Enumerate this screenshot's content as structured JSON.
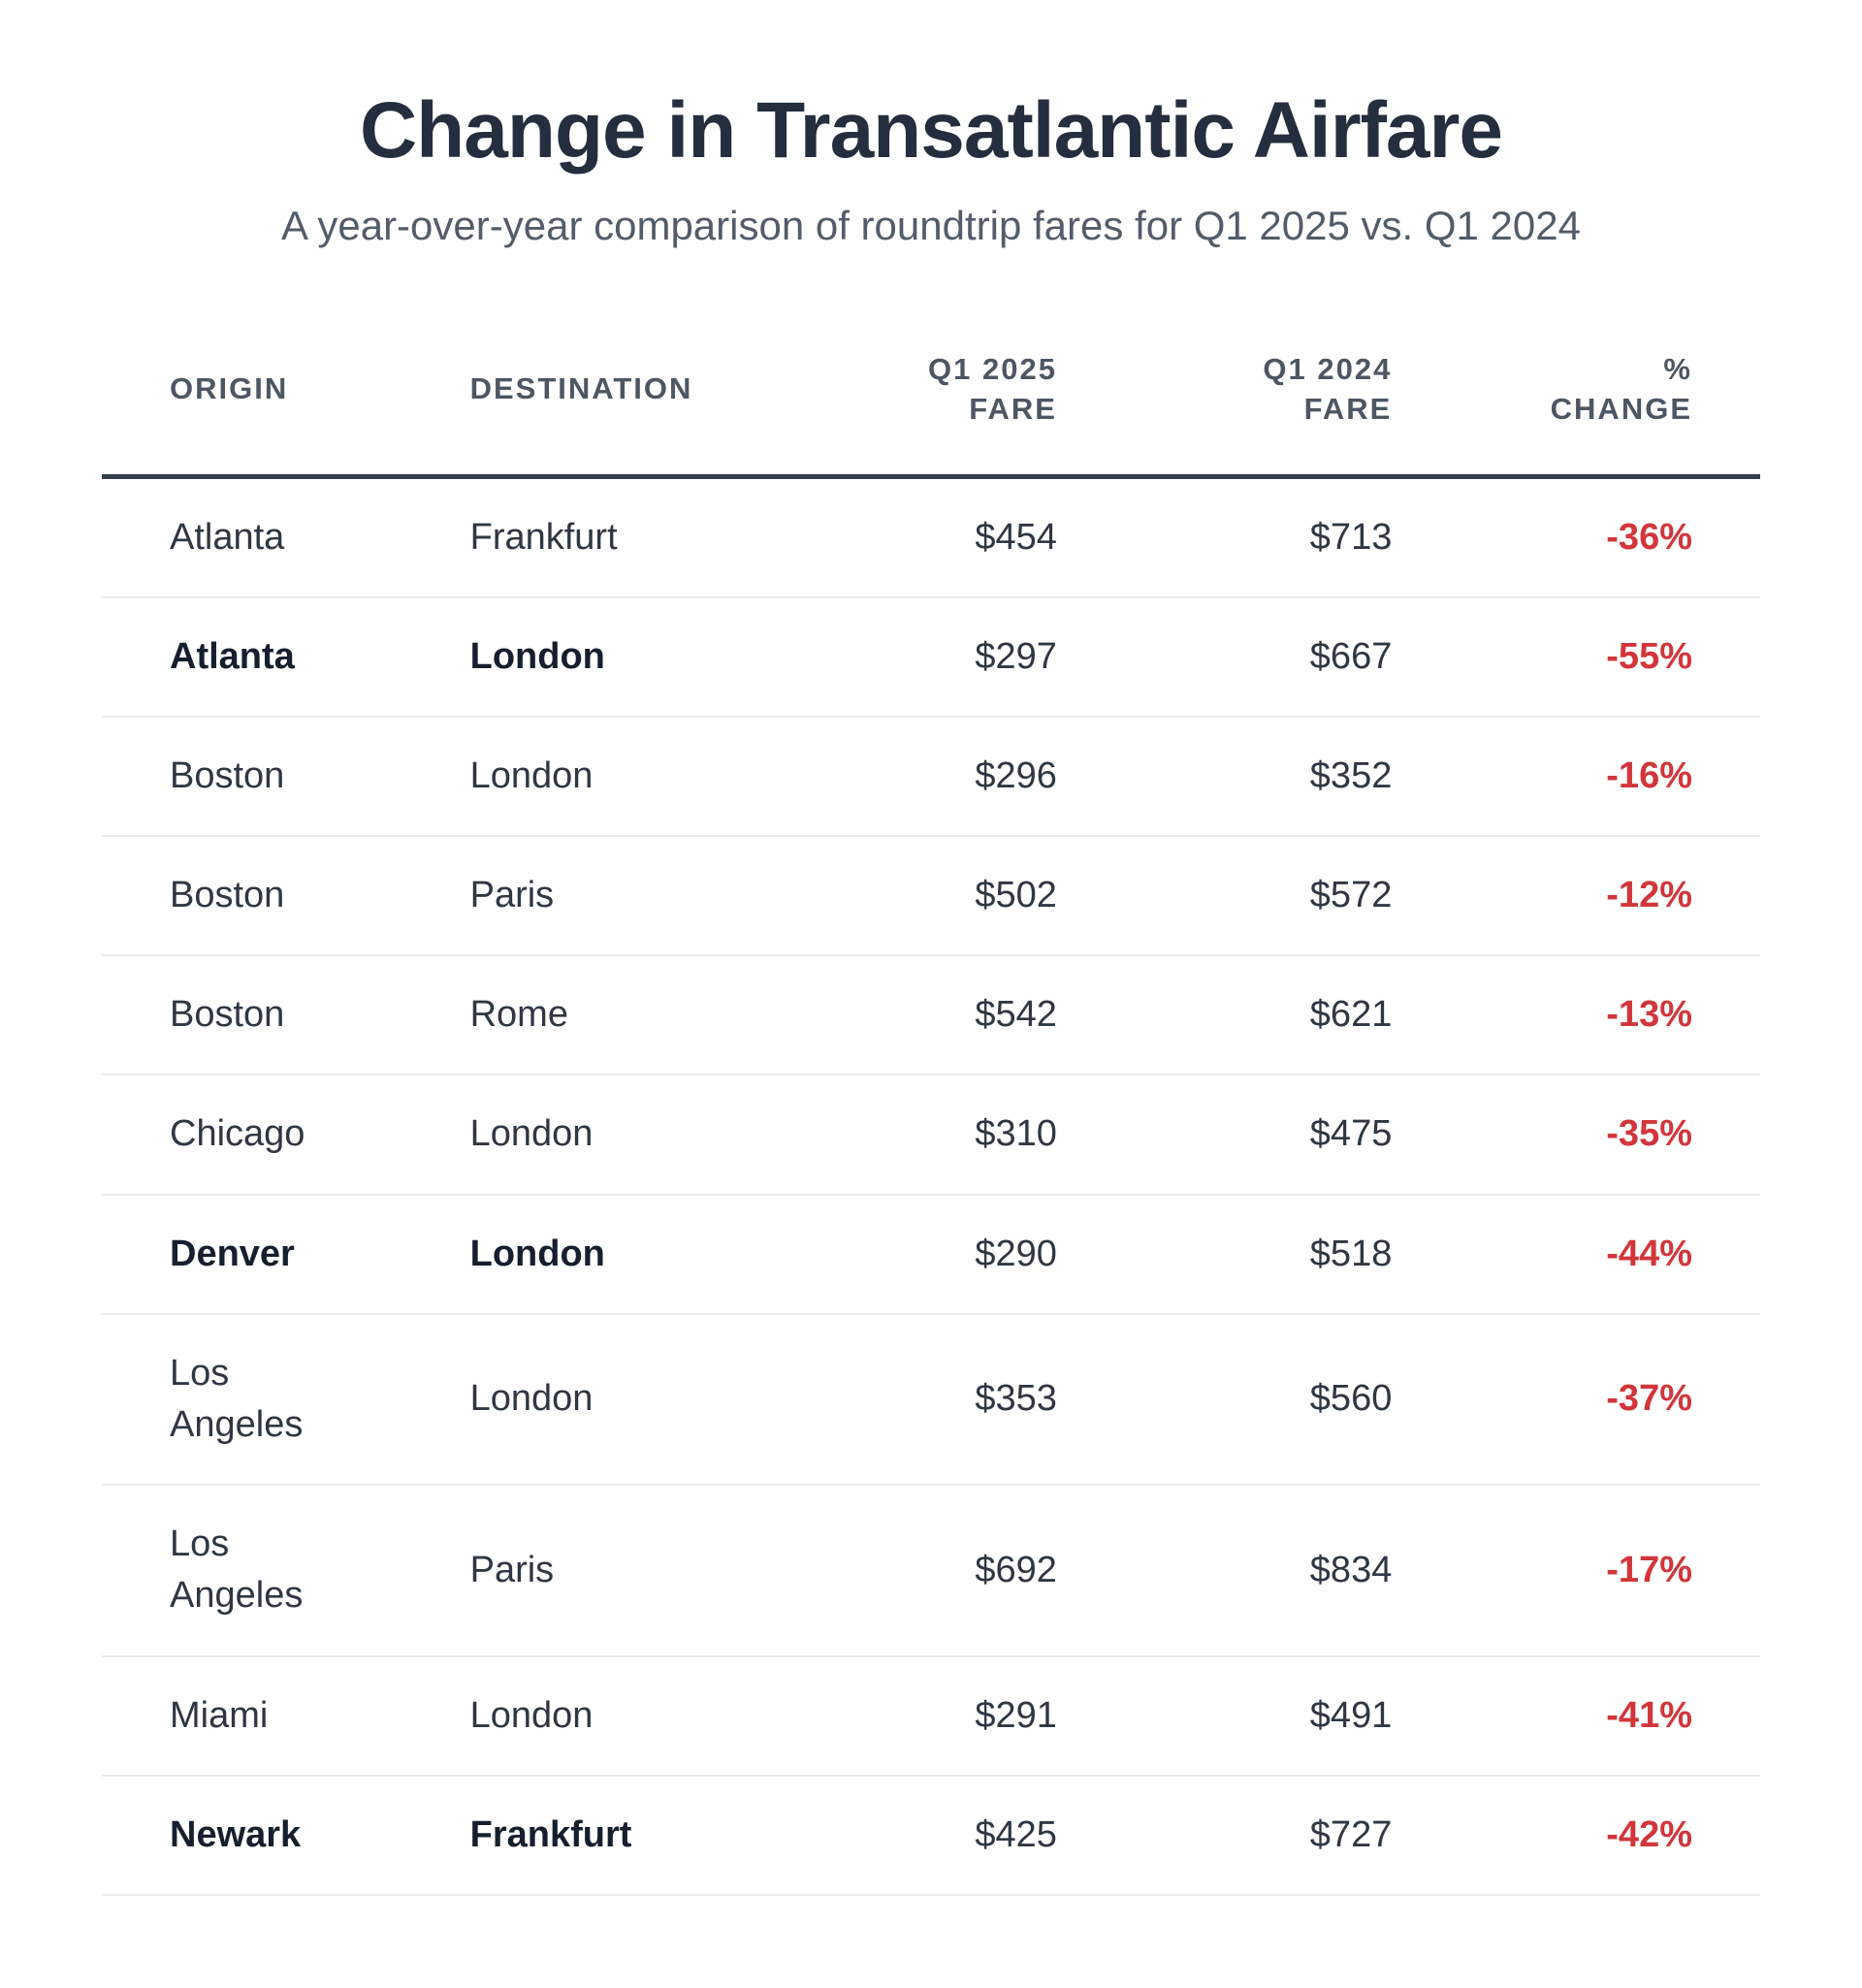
{
  "colors": {
    "title_text": "#242e3e",
    "subtitle_text": "#535c6a",
    "header_text": "#4d5663",
    "header_rule": "#333d4b",
    "body_text": "#2f3744",
    "emphasized_text": "#161f2e",
    "row_separator": "#e9ebee",
    "negative_change_red": "#d2363b",
    "background": "#ffffff"
  },
  "chart_data": {
    "type": "table",
    "title": "Change in Transatlantic Airfare",
    "subtitle": "A year-over-year comparison of roundtrip fares for Q1 2025 vs. Q1 2024",
    "columns": [
      {
        "label": "ORIGIN",
        "align": "left"
      },
      {
        "label": "DESTINATION",
        "align": "left"
      },
      {
        "label": "Q1 2025\nFARE",
        "align": "right"
      },
      {
        "label": "Q1 2024\nFARE",
        "align": "right"
      },
      {
        "label": "%\nCHANGE",
        "align": "right"
      }
    ],
    "rows": [
      {
        "origin": "Atlanta",
        "destination": "Frankfurt",
        "fare_2025": "$454",
        "fare_2024": "$713",
        "pct_change": "-36%",
        "emphasized": false
      },
      {
        "origin": "Atlanta",
        "destination": "London",
        "fare_2025": "$297",
        "fare_2024": "$667",
        "pct_change": "-55%",
        "emphasized": true
      },
      {
        "origin": "Boston",
        "destination": "London",
        "fare_2025": "$296",
        "fare_2024": "$352",
        "pct_change": "-16%",
        "emphasized": false
      },
      {
        "origin": "Boston",
        "destination": "Paris",
        "fare_2025": "$502",
        "fare_2024": "$572",
        "pct_change": "-12%",
        "emphasized": false
      },
      {
        "origin": "Boston",
        "destination": "Rome",
        "fare_2025": "$542",
        "fare_2024": "$621",
        "pct_change": "-13%",
        "emphasized": false
      },
      {
        "origin": "Chicago",
        "destination": "London",
        "fare_2025": "$310",
        "fare_2024": "$475",
        "pct_change": "-35%",
        "emphasized": false
      },
      {
        "origin": "Denver",
        "destination": "London",
        "fare_2025": "$290",
        "fare_2024": "$518",
        "pct_change": "-44%",
        "emphasized": true
      },
      {
        "origin": "Los Angeles",
        "destination": "London",
        "fare_2025": "$353",
        "fare_2024": "$560",
        "pct_change": "-37%",
        "emphasized": false
      },
      {
        "origin": "Los Angeles",
        "destination": "Paris",
        "fare_2025": "$692",
        "fare_2024": "$834",
        "pct_change": "-17%",
        "emphasized": false
      },
      {
        "origin": "Miami",
        "destination": "London",
        "fare_2025": "$291",
        "fare_2024": "$491",
        "pct_change": "-41%",
        "emphasized": false
      },
      {
        "origin": "Newark",
        "destination": "Frankfurt",
        "fare_2025": "$425",
        "fare_2024": "$727",
        "pct_change": "-42%",
        "emphasized": true
      }
    ]
  }
}
